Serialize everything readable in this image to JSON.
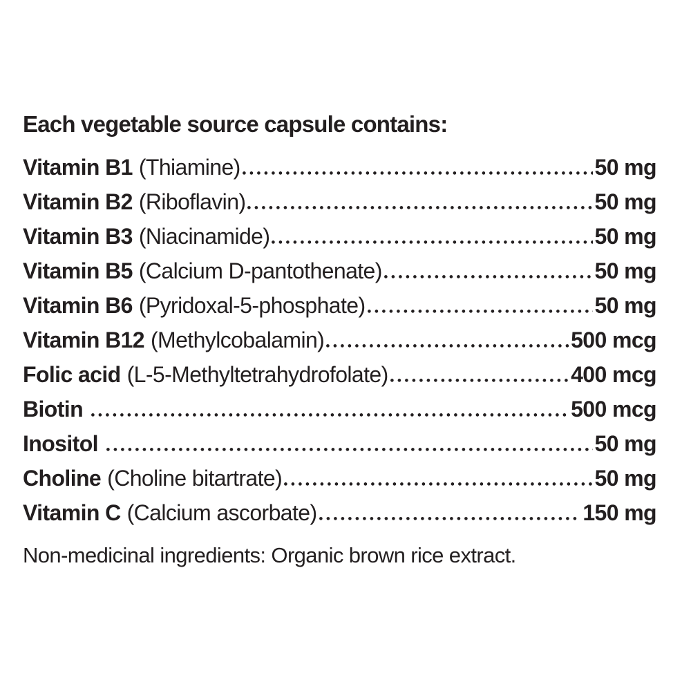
{
  "page": {
    "background_color": "#ffffff",
    "text_color": "#231f20"
  },
  "label": {
    "title": "Each vegetable source capsule contains:",
    "rows": [
      {
        "name": "Vitamin B1",
        "detail": "(Thiamine)",
        "value": "50 mg"
      },
      {
        "name": "Vitamin B2",
        "detail": "(Riboflavin)",
        "value": "50 mg"
      },
      {
        "name": "Vitamin B3",
        "detail": "(Niacinamide)",
        "value": "50 mg"
      },
      {
        "name": "Vitamin B5",
        "detail": "(Calcium D-pantothenate)",
        "value": "50 mg"
      },
      {
        "name": "Vitamin B6",
        "detail": "(Pyridoxal-5-phosphate)",
        "value": "50 mg"
      },
      {
        "name": "Vitamin B12",
        "detail": "(Methylcobalamin)",
        "value": "500 mcg"
      },
      {
        "name": "Folic acid",
        "detail": "(L-5-Methyltetrahydrofolate)",
        "value": "400 mcg"
      },
      {
        "name": "Biotin",
        "detail": "",
        "value": "500 mcg"
      },
      {
        "name": "Inositol",
        "detail": "",
        "value": "50 mg"
      },
      {
        "name": "Choline",
        "detail": "(Choline bitartrate)",
        "value": "50 mg"
      },
      {
        "name": "Vitamin C",
        "detail": "(Calcium ascorbate)",
        "value": "150 mg"
      }
    ],
    "footnote": "Non-medicinal ingredients: Organic brown rice extract."
  }
}
